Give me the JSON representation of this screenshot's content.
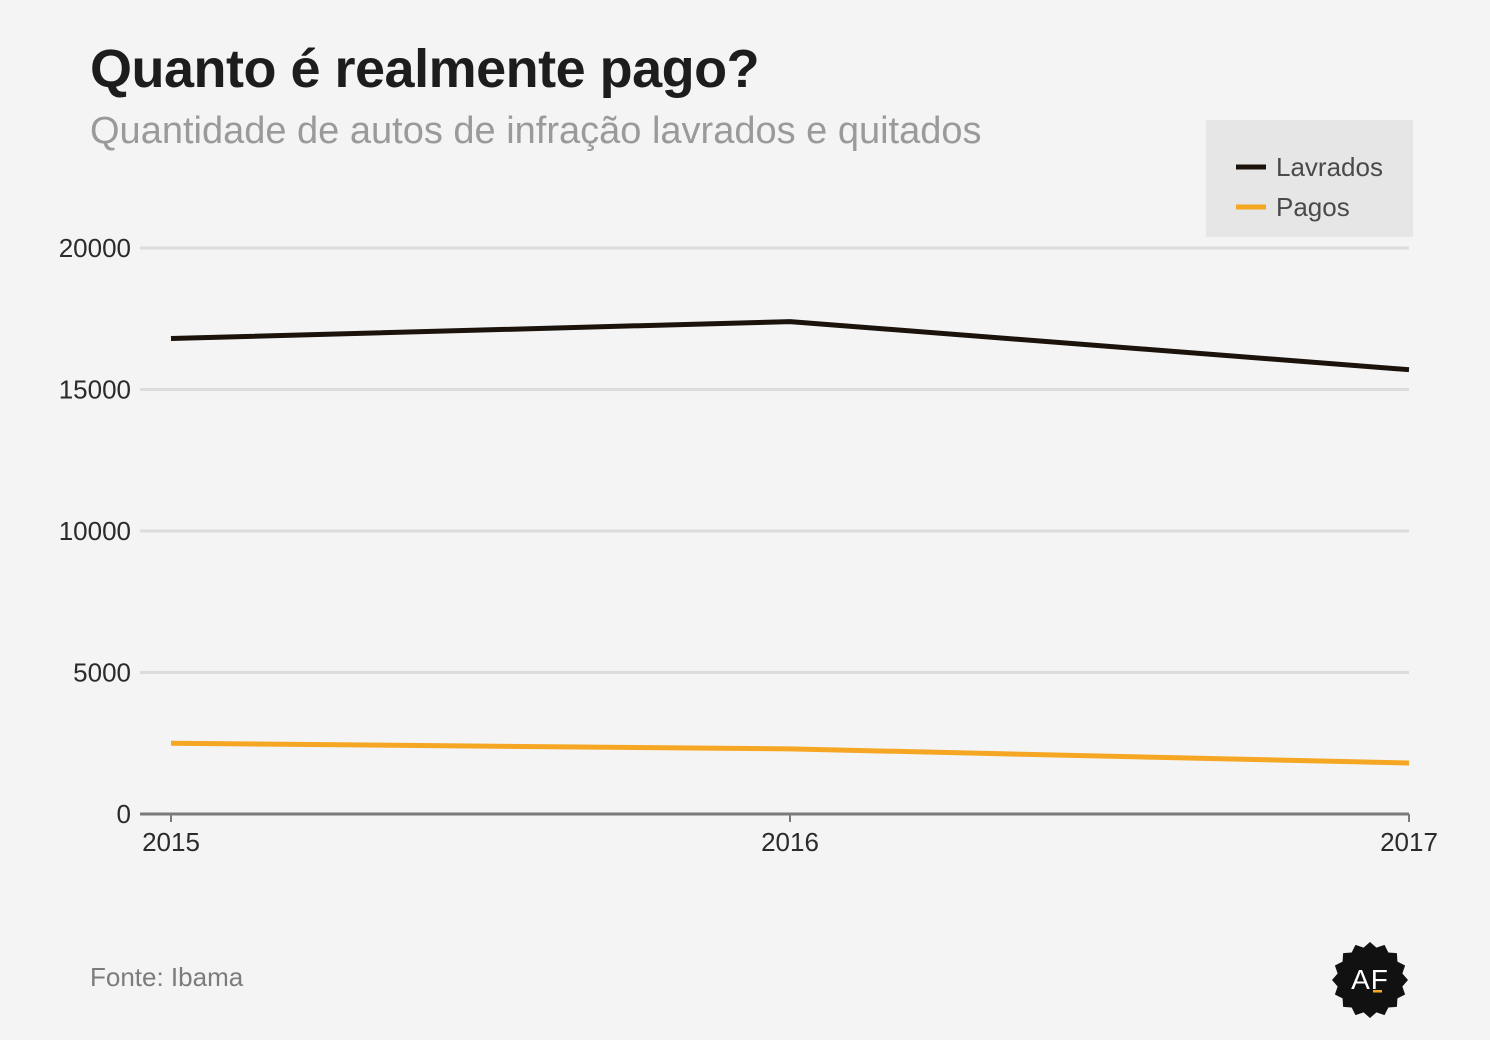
{
  "title": "Quanto é realmente pago?",
  "subtitle": "Quantidade de autos de infração lavrados e quitados",
  "source": "Fonte: Ibama",
  "logo_text": "AF",
  "chart_data": {
    "type": "line",
    "x": [
      2015,
      2016,
      2017
    ],
    "x_tick_labels": [
      "2015",
      "2016",
      "2017"
    ],
    "y_ticks": [
      0,
      5000,
      10000,
      15000,
      20000
    ],
    "y_tick_labels": [
      "0",
      "5000",
      "10000",
      "15000",
      "20000"
    ],
    "ylim": [
      0,
      20000
    ],
    "grid": true,
    "legend_position": "top-right",
    "series": [
      {
        "name": "Lavrados",
        "color": "#1a120b",
        "values": [
          16800,
          17400,
          15700
        ]
      },
      {
        "name": "Pagos",
        "color": "#f5a623",
        "values": [
          2500,
          2300,
          1800
        ]
      }
    ]
  }
}
